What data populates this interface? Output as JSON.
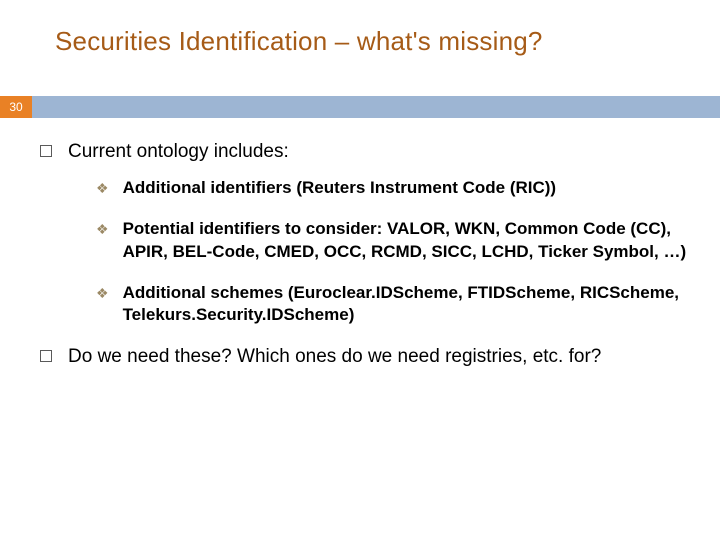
{
  "title": {
    "text": "Securities Identification – what's missing?",
    "color": "#a65b17",
    "fontsize": 26
  },
  "page_number": {
    "value": "30",
    "bg_color": "#e98125",
    "text_color": "#ffffff"
  },
  "accent_bar_color": "#9db5d3",
  "body": {
    "l1_bullet_border": "#5a5a5a",
    "l2_bullet_glyph": "❖",
    "l2_bullet_color": "#9b8965",
    "items": [
      {
        "text": "Current ontology includes:",
        "subs": [
          {
            "text": "Additional identifiers (Reuters Instrument Code (RIC))"
          },
          {
            "text": "Potential identifiers to consider: VALOR, WKN, Common Code (CC), APIR, BEL-Code, CMED, OCC, RCMD, SICC, LCHD, Ticker Symbol, …)"
          },
          {
            "text": "Additional schemes (Euroclear.IDScheme, FTIDScheme, RICScheme, Telekurs.Security.IDScheme)"
          }
        ]
      },
      {
        "text": "Do we need these?  Which ones do we need registries, etc. for?",
        "subs": []
      }
    ]
  }
}
